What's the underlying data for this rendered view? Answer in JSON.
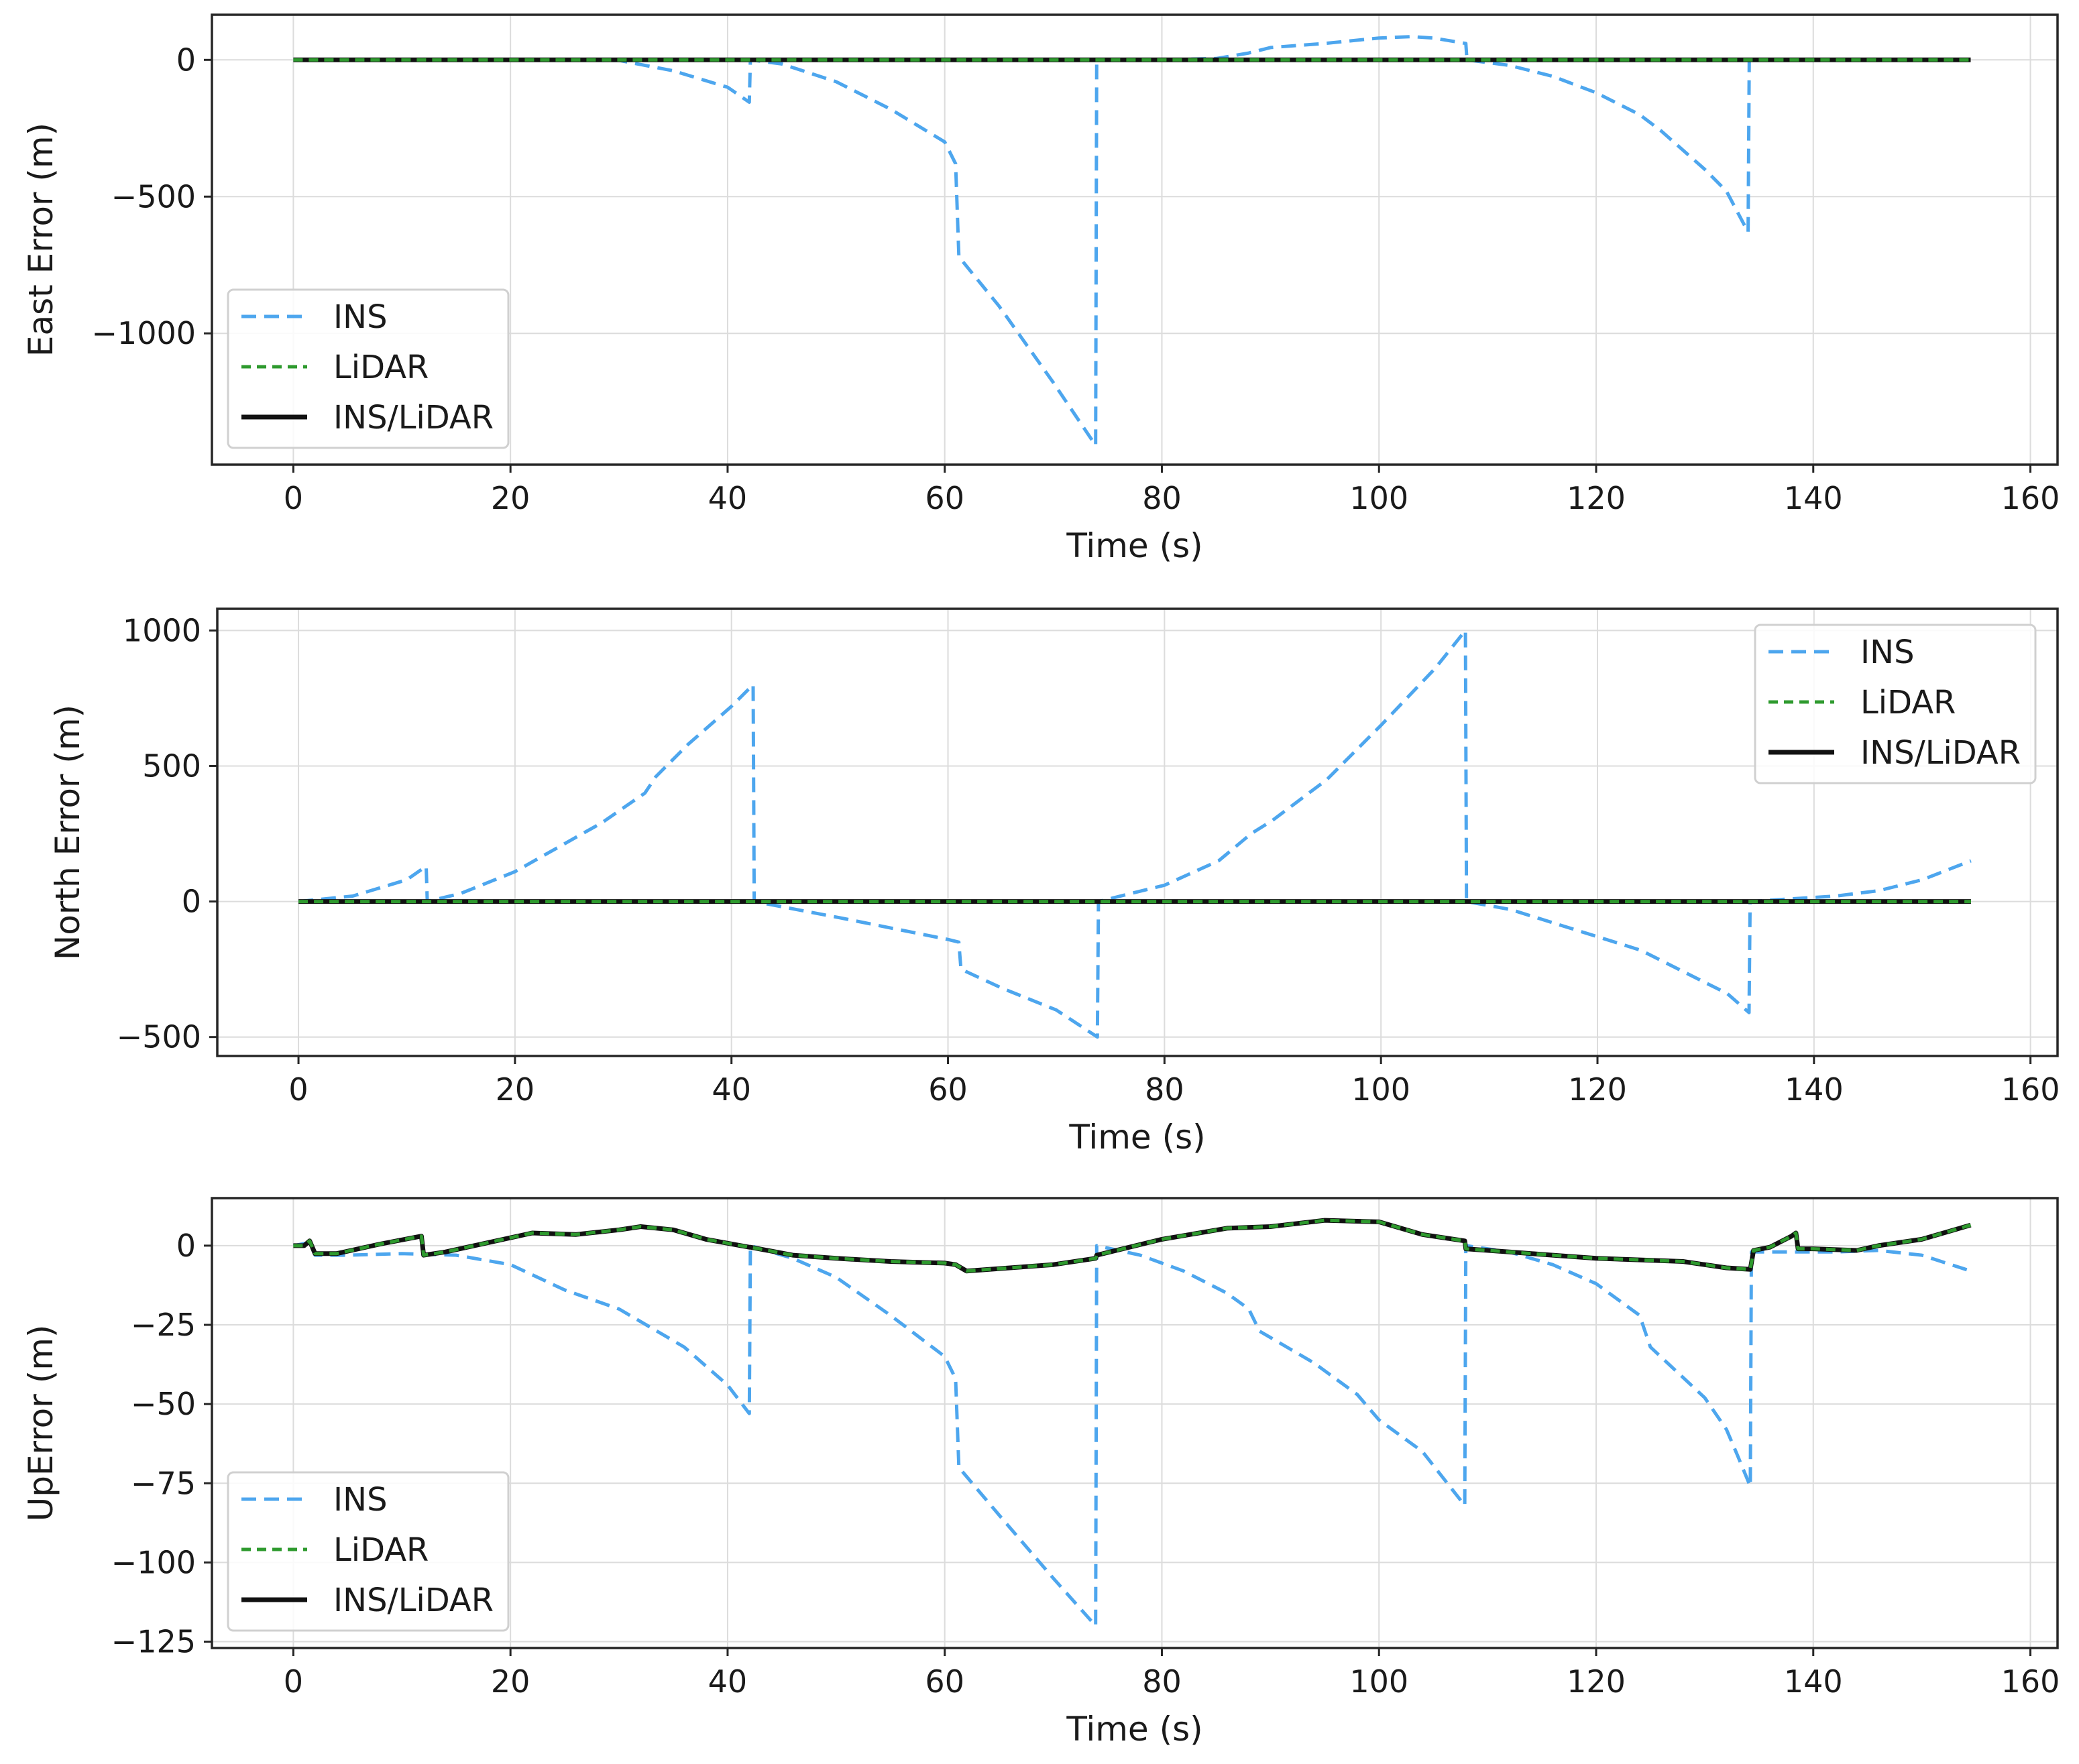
{
  "colors": {
    "ins": "#4da6ee",
    "lidar": "#2e9a2e",
    "ins_lidar": "#111111"
  },
  "chart_data": [
    {
      "type": "line",
      "title": "",
      "xlabel": "Time (s)",
      "ylabel": "East Error (m)",
      "xlim": [
        -7.5,
        162.5
      ],
      "ylim": [
        -1480,
        165
      ],
      "xticks": [
        0,
        20,
        40,
        60,
        80,
        100,
        120,
        140,
        160
      ],
      "yticks": [
        0,
        -500,
        -1000
      ],
      "xtick_labels": [
        "0",
        "20",
        "40",
        "60",
        "80",
        "100",
        "120",
        "140",
        "160"
      ],
      "ytick_labels": [
        "0",
        "−500",
        "−1000"
      ],
      "grid": true,
      "legend_position": "lower-left",
      "series": [
        {
          "name": "INS",
          "color": "#4da6ee",
          "style": "dashed",
          "x": [
            0,
            30,
            35,
            40,
            42,
            42.1,
            45,
            50,
            55,
            60,
            61,
            61.3,
            65,
            70,
            73.9,
            74,
            80,
            85,
            88,
            90,
            95,
            100,
            103,
            105,
            108,
            108.1,
            112,
            116,
            120,
            124,
            126,
            130,
            132,
            134,
            134.1,
            140,
            154.5
          ],
          "y": [
            0,
            -2,
            -40,
            -100,
            -155,
            0,
            -15,
            -80,
            -180,
            -300,
            -380,
            -720,
            -900,
            -1180,
            -1410,
            0,
            0,
            5,
            25,
            45,
            60,
            80,
            85,
            80,
            60,
            0,
            -20,
            -60,
            -120,
            -200,
            -260,
            -400,
            -480,
            -630,
            0,
            0,
            0
          ]
        },
        {
          "name": "LiDAR",
          "color": "#2e9a2e",
          "style": "dashed",
          "x": [
            0,
            20,
            40,
            60,
            80,
            100,
            120,
            140,
            154.5
          ],
          "y": [
            0,
            0,
            0,
            0,
            0,
            0,
            0,
            0,
            0
          ]
        },
        {
          "name": "INS/LiDAR",
          "color": "#111111",
          "style": "solid",
          "x": [
            0,
            20,
            40,
            60,
            80,
            100,
            120,
            140,
            154.5
          ],
          "y": [
            0,
            0,
            0,
            0,
            0,
            0,
            0,
            0,
            0
          ]
        }
      ]
    },
    {
      "type": "line",
      "title": "",
      "xlabel": "Time (s)",
      "ylabel": "North Error (m)",
      "xlim": [
        -7.5,
        162.5
      ],
      "ylim": [
        -570,
        1080
      ],
      "xticks": [
        0,
        20,
        40,
        60,
        80,
        100,
        120,
        140,
        160
      ],
      "yticks": [
        1000,
        500,
        0,
        -500
      ],
      "xtick_labels": [
        "0",
        "20",
        "40",
        "60",
        "80",
        "100",
        "120",
        "140",
        "160"
      ],
      "ytick_labels": [
        "1000",
        "500",
        "0",
        "−500"
      ],
      "grid": true,
      "legend_position": "upper-right",
      "series": [
        {
          "name": "INS",
          "color": "#4da6ee",
          "style": "dashed",
          "x": [
            0,
            5,
            10,
            11.8,
            11.9,
            15,
            20,
            24,
            28,
            32,
            33,
            36,
            40,
            42,
            42.1,
            50,
            60,
            61,
            61.2,
            65,
            70,
            73.8,
            73.9,
            80,
            85,
            88,
            90,
            95,
            100,
            105,
            107.8,
            107.9,
            112,
            116,
            120,
            124,
            128,
            132,
            134,
            134.1,
            138,
            142,
            146,
            150,
            154.5
          ],
          "y": [
            0,
            20,
            80,
            130,
            0,
            30,
            110,
            200,
            290,
            400,
            460,
            580,
            720,
            800,
            0,
            -60,
            -140,
            -150,
            -250,
            -320,
            -400,
            -500,
            0,
            60,
            150,
            250,
            300,
            450,
            650,
            860,
            1000,
            0,
            -30,
            -80,
            -130,
            -180,
            -260,
            -340,
            -410,
            0,
            10,
            20,
            40,
            80,
            150
          ]
        },
        {
          "name": "LiDAR",
          "color": "#2e9a2e",
          "style": "dashed",
          "x": [
            0,
            20,
            40,
            60,
            80,
            100,
            120,
            140,
            154.5
          ],
          "y": [
            0,
            0,
            0,
            0,
            0,
            0,
            0,
            0,
            0
          ]
        },
        {
          "name": "INS/LiDAR",
          "color": "#111111",
          "style": "solid",
          "x": [
            0,
            20,
            40,
            60,
            80,
            100,
            120,
            140,
            154.5
          ],
          "y": [
            0,
            0,
            0,
            0,
            0,
            0,
            0,
            0,
            0
          ]
        }
      ]
    },
    {
      "type": "line",
      "title": "",
      "xlabel": "Time (s)",
      "ylabel": "UpError (m)",
      "xlim": [
        -7.5,
        162.5
      ],
      "ylim": [
        -127,
        15
      ],
      "xticks": [
        0,
        20,
        40,
        60,
        80,
        100,
        120,
        140,
        160
      ],
      "yticks": [
        0,
        -25,
        -50,
        -75,
        -100,
        -125
      ],
      "xtick_labels": [
        "0",
        "20",
        "40",
        "60",
        "80",
        "100",
        "120",
        "140",
        "160"
      ],
      "ytick_labels": [
        "0",
        "−25",
        "−50",
        "−75",
        "−100",
        "−125"
      ],
      "grid": true,
      "legend_position": "lower-left",
      "series": [
        {
          "name": "INS",
          "color": "#4da6ee",
          "style": "dashed",
          "x": [
            0,
            1.5,
            2,
            5,
            10,
            15,
            20,
            25,
            30,
            33,
            36,
            40,
            42,
            42.1,
            46,
            50,
            55,
            60,
            61,
            61.3,
            65,
            70,
            73.9,
            74,
            78,
            82,
            86,
            88,
            89,
            94,
            98,
            100,
            104,
            107.9,
            108,
            112,
            116,
            120,
            124,
            125,
            130,
            132,
            133,
            134.2,
            134.3,
            138,
            142,
            146,
            150,
            154.5
          ],
          "y": [
            0,
            1,
            -3,
            -3,
            -2.5,
            -3,
            -6,
            -14,
            -20,
            -26,
            -32,
            -44,
            -53,
            0,
            -4,
            -10,
            -22,
            -35,
            -42,
            -70,
            -85,
            -105,
            -120,
            0,
            -3,
            -8,
            -15,
            -20,
            -27,
            -37,
            -47,
            -55,
            -65,
            -82,
            0,
            -2,
            -6,
            -12,
            -22,
            -32,
            -48,
            -58,
            -66,
            -76,
            -2,
            -2,
            -2,
            -1.5,
            -3,
            -8
          ]
        },
        {
          "name": "LiDAR",
          "color": "#2e9a2e",
          "style": "dashed",
          "x": [
            0,
            1,
            1.5,
            2,
            4,
            8,
            11.8,
            12,
            14,
            18,
            22,
            26,
            30,
            32,
            35,
            38,
            42,
            42.1,
            46,
            50,
            55,
            60,
            61,
            62,
            66,
            70,
            73.9,
            74,
            80,
            86,
            90,
            95,
            100,
            104,
            107.9,
            108,
            112,
            116,
            120,
            124,
            128,
            132,
            134.2,
            134.5,
            136,
            138,
            138.4,
            138.6,
            140,
            144,
            146,
            150,
            154.5
          ],
          "y": [
            0,
            0,
            1.5,
            -2.5,
            -2.5,
            0.5,
            3,
            -3,
            -2,
            1,
            4,
            3.5,
            5,
            6,
            5,
            2,
            -0.5,
            -0.5,
            -3,
            -4,
            -5,
            -5.5,
            -6,
            -8,
            -7,
            -6,
            -4,
            -3,
            2,
            5.5,
            6,
            8,
            7.5,
            3.5,
            1.5,
            -1,
            -2,
            -3,
            -4,
            -4.5,
            -5,
            -7,
            -7.5,
            -1.5,
            -0.5,
            3,
            4,
            -1,
            -1,
            -1.5,
            0,
            2,
            6.5
          ]
        },
        {
          "name": "INS/LiDAR",
          "color": "#111111",
          "style": "solid",
          "x": [
            0,
            1,
            1.5,
            2,
            4,
            8,
            11.8,
            12,
            14,
            18,
            22,
            26,
            30,
            32,
            35,
            38,
            42,
            42.1,
            46,
            50,
            55,
            60,
            61,
            62,
            66,
            70,
            73.9,
            74,
            80,
            86,
            90,
            95,
            100,
            104,
            107.9,
            108,
            112,
            116,
            120,
            124,
            128,
            132,
            134.2,
            134.5,
            136,
            138,
            138.4,
            138.6,
            140,
            144,
            146,
            150,
            154.5
          ],
          "y": [
            0,
            0,
            1.5,
            -2.5,
            -2.5,
            0.5,
            3,
            -3,
            -2,
            1,
            4,
            3.5,
            5,
            6,
            5,
            2,
            -0.5,
            -0.5,
            -3,
            -4,
            -5,
            -5.5,
            -6,
            -8,
            -7,
            -6,
            -4,
            -3,
            2,
            5.5,
            6,
            8,
            7.5,
            3.5,
            1.5,
            -1,
            -2,
            -3,
            -4,
            -4.5,
            -5,
            -7,
            -7.5,
            -1.5,
            -0.5,
            3,
            4,
            -1,
            -1,
            -1.5,
            0,
            2,
            6.5
          ]
        }
      ]
    }
  ]
}
